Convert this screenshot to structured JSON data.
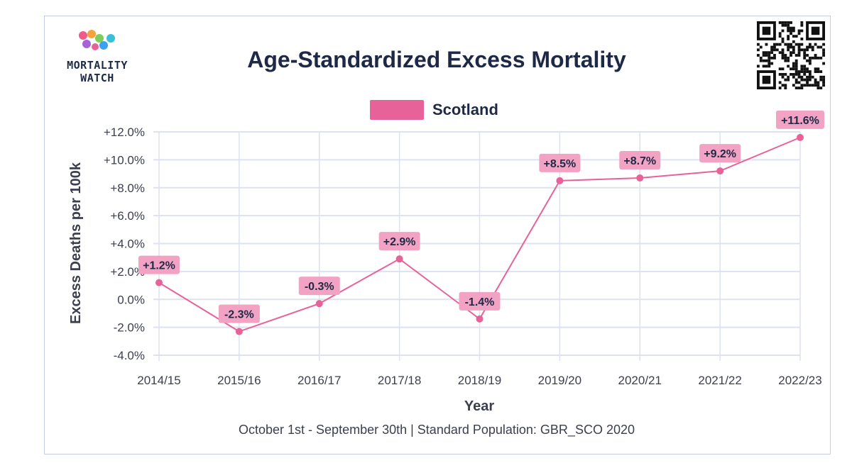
{
  "logo": {
    "line1": "MORTALITY",
    "line2": "WATCH"
  },
  "qr": {
    "icon": "qr-code-icon"
  },
  "footer": {
    "text": "October 1st - September 30th | Standard Population: GBR_SCO 2020"
  },
  "colors": {
    "series": "#e8629a",
    "label_bg": "#f2a3c4",
    "grid": "#dde1f0",
    "text": "#1e2a45"
  },
  "chart_data": {
    "type": "line",
    "title": "Age-Standardized Excess Mortality",
    "xlabel": "Year",
    "ylabel": "Excess Deaths per 100k",
    "ylim": [
      -4,
      12
    ],
    "yticks": [
      -4,
      -2,
      0,
      2,
      4,
      6,
      8,
      10,
      12
    ],
    "ytick_labels": [
      "-4.0%",
      "-2.0%",
      "0.0%",
      "+2.0%",
      "+4.0%",
      "+6.0%",
      "+8.0%",
      "+10.0%",
      "+12.0%"
    ],
    "grid": true,
    "legend_position": "top-center",
    "categories": [
      "2014/15",
      "2015/16",
      "2016/17",
      "2017/18",
      "2018/19",
      "2019/20",
      "2020/21",
      "2021/22",
      "2022/23"
    ],
    "series": [
      {
        "name": "Scotland",
        "color": "#e8629a",
        "values": [
          1.2,
          -2.3,
          -0.3,
          2.9,
          -1.4,
          8.5,
          8.7,
          9.2,
          11.6
        ],
        "labels": [
          "+1.2%",
          "-2.3%",
          "-0.3%",
          "+2.9%",
          "-1.4%",
          "+8.5%",
          "+8.7%",
          "+9.2%",
          "+11.6%"
        ]
      }
    ]
  }
}
